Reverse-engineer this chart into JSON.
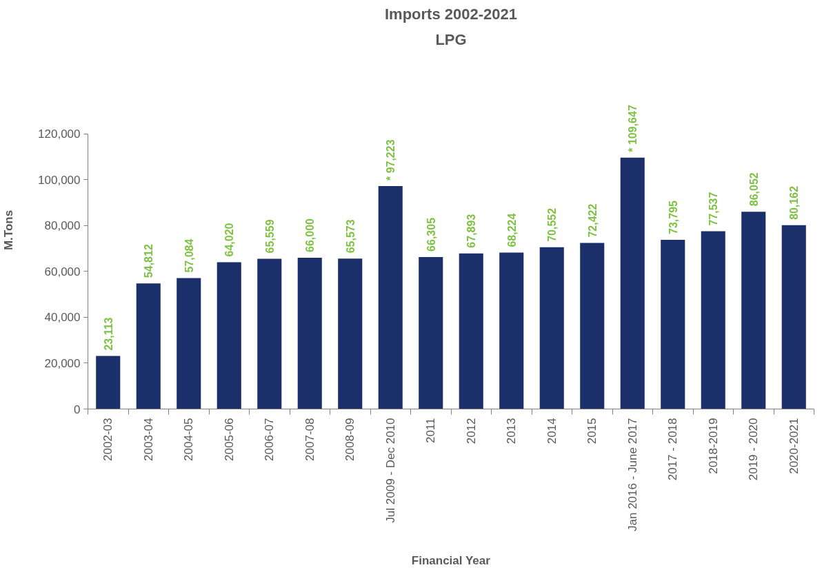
{
  "chart_data": {
    "type": "bar",
    "title": "Imports 2002-2021",
    "subtitle": "LPG",
    "xlabel": "Financial Year",
    "ylabel": "M.Tons",
    "categories": [
      "2002-03",
      "2003-04",
      "2004-05",
      "2005-06",
      "2006-07",
      "2007-08",
      "2008-09",
      "Jul 2009 - Dec 2010",
      "2011",
      "2012",
      "2013",
      "2014",
      "2015",
      "Jan 2016 - June 2017",
      "2017 - 2018",
      "2018-2019",
      "2019 - 2020",
      "2020-2021"
    ],
    "values": [
      23113,
      54812,
      57084,
      64020,
      65559,
      66000,
      65573,
      97223,
      66305,
      67893,
      68224,
      70552,
      72422,
      109647,
      73795,
      77537,
      86052,
      80162
    ],
    "value_labels": [
      "23,113",
      "54,812",
      "57,084",
      "64,020",
      "65,559",
      "66,000",
      "65,573",
      "* 97,223",
      "66,305",
      "67,893",
      "68,224",
      "70,552",
      "72,422",
      "* 109,647",
      "73,795",
      "77,537",
      "86,052",
      "80,162"
    ],
    "color": "#1b2f6b",
    "ylim": [
      0,
      120000
    ],
    "yticks": [
      {
        "value": 0,
        "label": "0"
      },
      {
        "value": 20000,
        "label": "20,000"
      },
      {
        "value": 40000,
        "label": "40,000"
      },
      {
        "value": 60000,
        "label": "60,000"
      },
      {
        "value": 80000,
        "label": "80,000"
      },
      {
        "value": 100000,
        "label": "100,000"
      },
      {
        "value": 120000,
        "label": "120,000"
      }
    ]
  }
}
